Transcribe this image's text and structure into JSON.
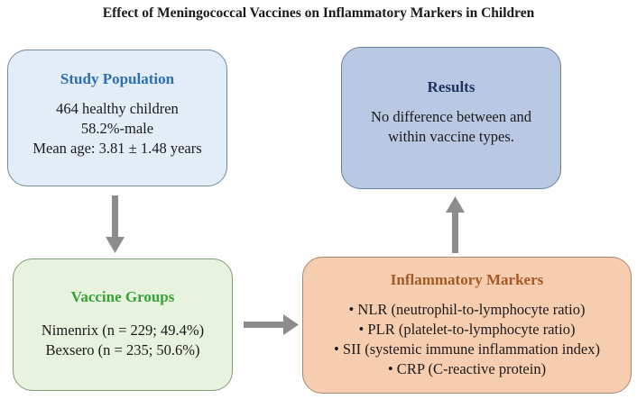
{
  "title": "Effect of Meningococcal Vaccines on Inflammatory Markers in Children",
  "study_population": {
    "header": "Study Population",
    "lines": [
      "464 healthy children",
      "58.2%-male",
      "Mean age: 3.81 ± 1.48 years"
    ]
  },
  "results": {
    "header": "Results",
    "lines": [
      "No difference between and",
      "within vaccine types."
    ]
  },
  "vaccine_groups": {
    "header": "Vaccine Groups",
    "lines": [
      "Nimenrix (n = 229; 49.4%)",
      "Bexsero (n = 235; 50.6%)"
    ]
  },
  "inflammatory_markers": {
    "header": "Inflammatory Markers",
    "lines": [
      "• NLR (neutrophil-to-lymphocyte ratio)",
      "• PLR (platelet-to-lymphocyte ratio)",
      "• SII (systemic immune inflammation index)",
      "• CRP (C-reactive protein)"
    ]
  },
  "colors": {
    "arrow": "#8c8c8c",
    "study_header": "#2c6fb3",
    "results_header": "#1f3360",
    "vaccine_header": "#36a334",
    "markers_header": "#a55a23"
  }
}
